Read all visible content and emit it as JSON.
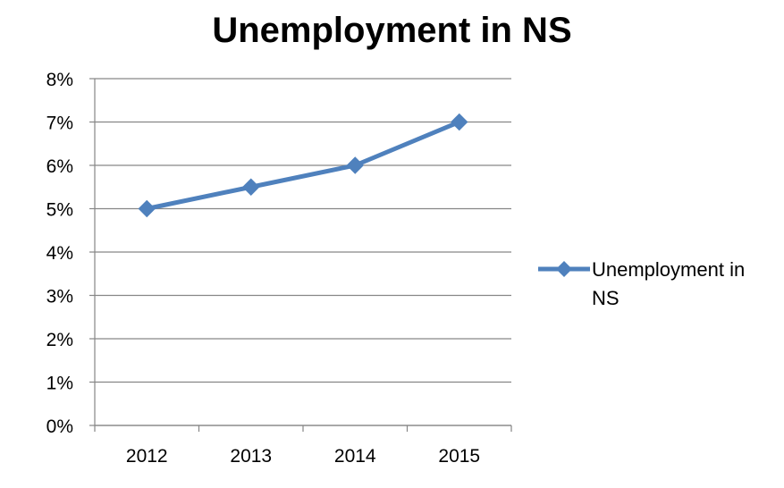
{
  "chart_data": {
    "type": "line",
    "title": "Unemployment in NS",
    "xlabel": "",
    "ylabel": "",
    "categories": [
      "2012",
      "2013",
      "2014",
      "2015"
    ],
    "series": [
      {
        "name": "Unemployment in NS",
        "values": [
          5.0,
          5.5,
          6.0,
          7.0
        ],
        "color": "#4F81BD",
        "marker": "diamond"
      }
    ],
    "ylim": [
      0,
      8
    ],
    "yticks": [
      "0%",
      "1%",
      "2%",
      "3%",
      "4%",
      "5%",
      "6%",
      "7%",
      "8%"
    ],
    "grid": true,
    "legend": {
      "position": "right",
      "lines": [
        "Unemployment in",
        "NS"
      ]
    }
  }
}
